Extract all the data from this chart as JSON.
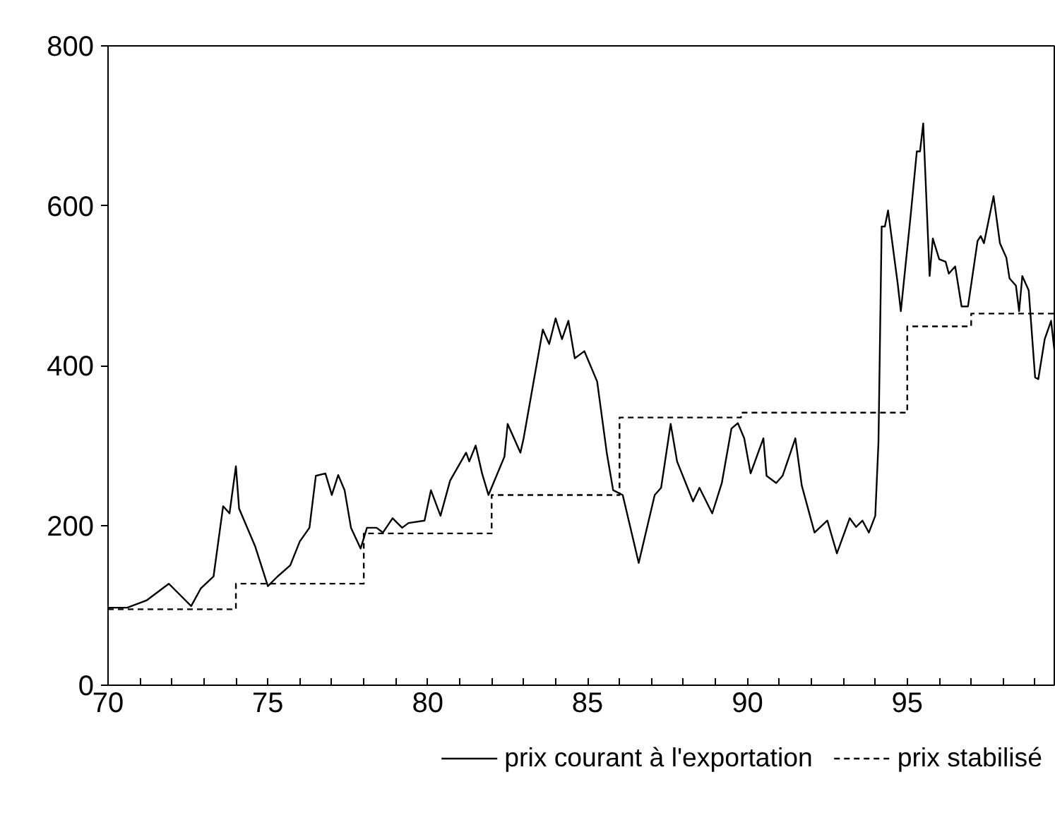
{
  "chart_data": {
    "type": "line",
    "xlim": [
      70,
      99.6
    ],
    "ylim": [
      0,
      800
    ],
    "xticks": [
      70,
      {
        "value": 71,
        "label": null
      },
      {
        "value": 72,
        "label": null
      },
      {
        "value": 73,
        "label": null
      },
      {
        "value": 74,
        "label": null
      },
      75,
      {
        "value": 76,
        "label": null
      },
      {
        "value": 77,
        "label": null
      },
      {
        "value": 78,
        "label": null
      },
      {
        "value": 79,
        "label": null
      },
      80,
      {
        "value": 81,
        "label": null
      },
      {
        "value": 82,
        "label": null
      },
      {
        "value": 83,
        "label": null
      },
      {
        "value": 84,
        "label": null
      },
      85,
      {
        "value": 86,
        "label": null
      },
      {
        "value": 87,
        "label": null
      },
      {
        "value": 88,
        "label": null
      },
      {
        "value": 89,
        "label": null
      },
      90,
      {
        "value": 91,
        "label": null
      },
      {
        "value": 92,
        "label": null
      },
      {
        "value": 93,
        "label": null
      },
      {
        "value": 94,
        "label": null
      },
      95,
      {
        "value": 96,
        "label": null
      },
      {
        "value": 97,
        "label": null
      },
      {
        "value": 98,
        "label": null
      },
      {
        "value": 99,
        "label": null
      }
    ],
    "yticks": [
      0,
      200,
      400,
      600,
      800
    ],
    "grid": false,
    "legend": "bottom",
    "series": [
      {
        "name": "prix courant à l'exportation",
        "color": "#000000",
        "line_style": "solid",
        "x": [
          70.0,
          70.6,
          71.2,
          71.9,
          72.6,
          72.9,
          73.3,
          73.6,
          73.8,
          74.0,
          74.1,
          74.6,
          75.0,
          75.3,
          75.7,
          76.0,
          76.3,
          76.5,
          76.8,
          77.0,
          77.2,
          77.4,
          77.6,
          77.9,
          78.1,
          78.4,
          78.6,
          78.9,
          79.2,
          79.4,
          79.9,
          80.1,
          80.4,
          80.7,
          81.2,
          81.3,
          81.5,
          81.7,
          81.9,
          82.4,
          82.5,
          82.9,
          83.0,
          83.6,
          83.8,
          84.0,
          84.2,
          84.4,
          84.6,
          84.9,
          85.3,
          85.6,
          85.8,
          86.1,
          86.6,
          87.1,
          87.3,
          87.6,
          87.8,
          88.3,
          88.5,
          88.9,
          89.2,
          89.5,
          89.7,
          89.9,
          90.1,
          90.5,
          90.6,
          90.9,
          91.1,
          91.5,
          91.7,
          92.1,
          92.5,
          92.8,
          93.2,
          93.4,
          93.6,
          93.8,
          94.0,
          94.1,
          94.2,
          94.3,
          94.4,
          94.7,
          94.8,
          95.1,
          95.3,
          95.4,
          95.5,
          95.7,
          95.8,
          96.0,
          96.2,
          96.3,
          96.5,
          96.7,
          96.9,
          97.2,
          97.3,
          97.4,
          97.7,
          97.9,
          98.1,
          98.2,
          98.4,
          98.5,
          98.6,
          98.8,
          99.0,
          99.1,
          99.3,
          99.5,
          99.6
        ],
        "values": [
          97,
          97,
          106,
          127,
          99,
          121,
          136,
          224,
          215,
          274,
          221,
          174,
          124,
          136,
          150,
          180,
          197,
          262,
          265,
          238,
          263,
          244,
          197,
          171,
          197,
          197,
          191,
          209,
          197,
          203,
          206,
          244,
          212,
          256,
          291,
          280,
          300,
          265,
          238,
          286,
          327,
          291,
          309,
          445,
          427,
          459,
          433,
          456,
          409,
          418,
          380,
          291,
          244,
          238,
          153,
          238,
          247,
          327,
          280,
          230,
          247,
          215,
          253,
          321,
          328,
          309,
          265,
          309,
          262,
          253,
          262,
          309,
          250,
          191,
          206,
          165,
          209,
          198,
          206,
          191,
          212,
          304,
          574,
          574,
          594,
          503,
          468,
          585,
          668,
          668,
          703,
          512,
          559,
          533,
          530,
          515,
          524,
          474,
          474,
          556,
          562,
          553,
          612,
          553,
          535,
          509,
          500,
          468,
          512,
          494,
          385,
          383,
          433,
          456,
          420
        ]
      },
      {
        "name": "prix stabilisé",
        "type": "step",
        "color": "#000000",
        "line_style": "dashed",
        "x": [
          70,
          74,
          78,
          82,
          86,
          89.8,
          95,
          97,
          99.6
        ],
        "values": [
          95,
          127,
          190,
          238,
          335,
          341,
          449,
          465,
          465
        ]
      }
    ]
  }
}
